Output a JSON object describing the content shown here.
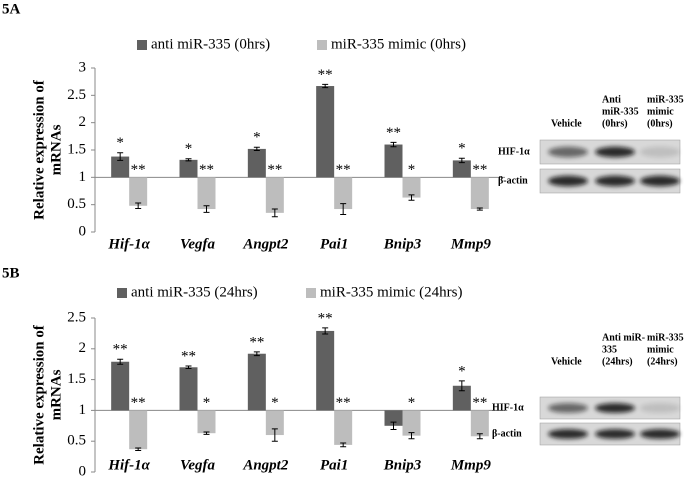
{
  "panels": [
    {
      "label": "5A",
      "blot": {
        "lanes": [
          [
            "Vehicle"
          ],
          [
            "Anti",
            "miR-335",
            "(0hrs)"
          ],
          [
            "miR-335",
            "mimic",
            "(0hrs)"
          ]
        ],
        "rows": [
          "HIF-1α",
          "β-actin"
        ]
      }
    },
    {
      "label": "5B",
      "blot": {
        "lanes": [
          [
            "Vehicle"
          ],
          [
            "Anti miR-",
            "335",
            "(24hrs)"
          ],
          [
            "miR-335",
            "mimic",
            "(24hrs)"
          ]
        ],
        "rows": [
          "HIF-1α",
          "β-actin"
        ]
      }
    }
  ],
  "chart_data": [
    {
      "type": "bar",
      "y_label": [
        "Relative expression of",
        "mRNAs"
      ],
      "baseline": 1,
      "categories": [
        "Hif-1α",
        "Vegfa",
        "Angpt2",
        "Pai1",
        "Bnip3",
        "Mmp9"
      ],
      "series": [
        {
          "name": "anti miR-335 (0hrs)",
          "color": "#606060",
          "values": [
            1.38,
            1.32,
            1.52,
            2.67,
            1.6,
            1.31
          ],
          "errors": [
            0.07,
            0.02,
            0.03,
            0.03,
            0.04,
            0.04
          ],
          "annotations": [
            "*",
            "*",
            "*",
            "**",
            "**",
            "*"
          ]
        },
        {
          "name": "miR-335 mimic (0hrs)",
          "color": "#bdbdbd",
          "values": [
            0.48,
            0.42,
            0.35,
            0.42,
            0.63,
            0.42
          ],
          "errors": [
            0.05,
            0.06,
            0.07,
            0.1,
            0.05,
            0.02
          ],
          "annotations": [
            "**",
            "**",
            "**",
            "**",
            "*",
            "**"
          ]
        }
      ],
      "ylim": [
        0,
        3
      ],
      "yticks": [
        0,
        0.5,
        1,
        1.5,
        2,
        2.5,
        3
      ]
    },
    {
      "type": "bar",
      "y_label": [
        "Relative expression of",
        "mRNAs"
      ],
      "baseline": 1,
      "categories": [
        "Hif-1α",
        "Vegfa",
        "Angpt2",
        "Pai1",
        "Bnip3",
        "Mmp9"
      ],
      "series": [
        {
          "name": "anti miR-335 (24hrs)",
          "color": "#606060",
          "values": [
            1.79,
            1.7,
            1.92,
            2.29,
            0.75,
            1.4
          ],
          "errors": [
            0.04,
            0.02,
            0.03,
            0.05,
            0.06,
            0.08
          ],
          "annotations": [
            "**",
            "**",
            "**",
            "**",
            null,
            "*"
          ]
        },
        {
          "name": "miR-335 mimic (24hrs)",
          "color": "#bdbdbd",
          "values": [
            0.37,
            0.63,
            0.6,
            0.44,
            0.59,
            0.58
          ],
          "errors": [
            0.02,
            0.02,
            0.1,
            0.03,
            0.05,
            0.04
          ],
          "annotations": [
            "**",
            "*",
            "*",
            "**",
            "*",
            "**"
          ]
        }
      ],
      "ylim": [
        0,
        2.5
      ],
      "yticks": [
        0,
        0.5,
        1,
        1.5,
        2,
        2.5
      ]
    }
  ]
}
